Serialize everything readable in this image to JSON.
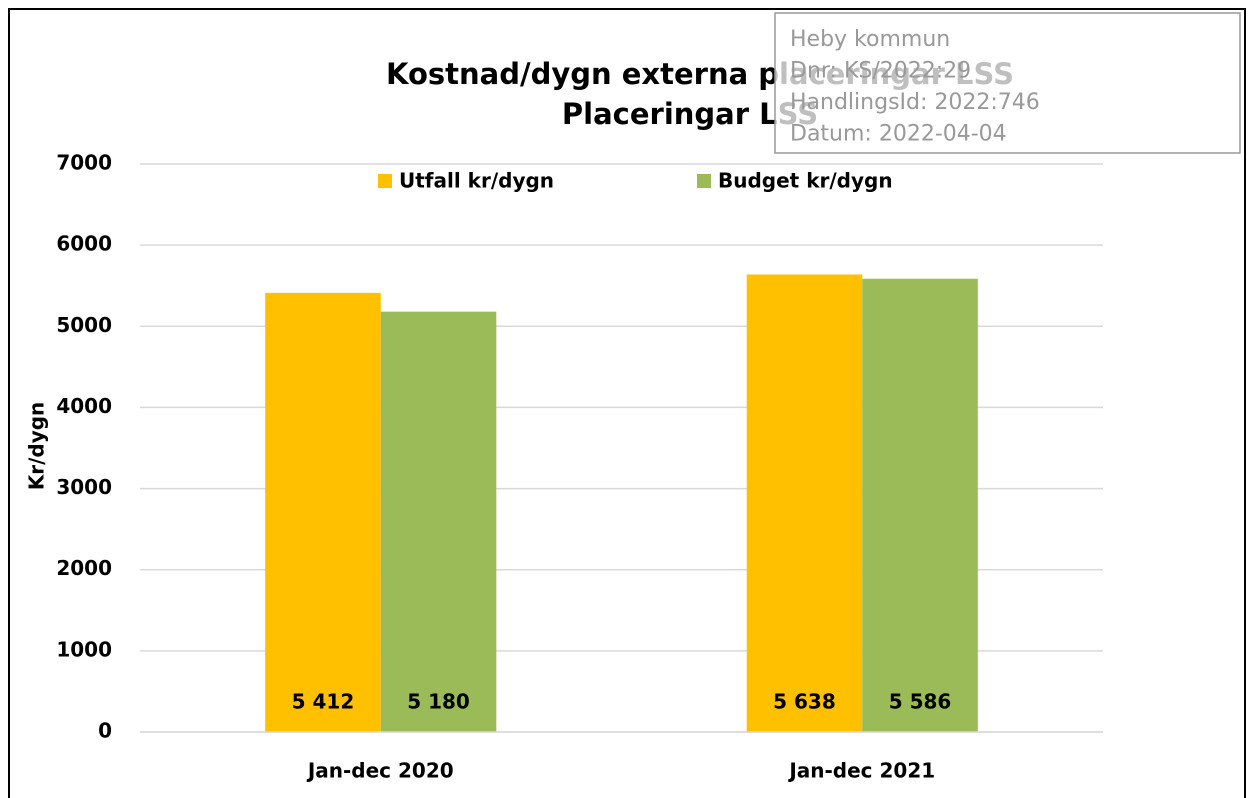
{
  "chart_data": {
    "type": "bar",
    "title": [
      "Kostnad/dygn externa placeringar LSS",
      "Placeringar LSS"
    ],
    "ylabel": "Kr/dygn",
    "categories": [
      "Jan-dec 2020",
      "Jan-dec 2021"
    ],
    "series": [
      {
        "name": "Utfall kr/dygn",
        "color": "#ffc000",
        "values": [
          5412,
          5638
        ],
        "value_labels": [
          "5 412",
          "5 638"
        ]
      },
      {
        "name": "Budget kr/dygn",
        "color": "#9bbb59",
        "values": [
          5180,
          5586
        ],
        "value_labels": [
          "5 180",
          "5 586"
        ]
      }
    ],
    "ylim": [
      0,
      7000
    ],
    "yticks": [
      0,
      1000,
      2000,
      3000,
      4000,
      5000,
      6000,
      7000
    ],
    "grid": true,
    "legend": "top"
  },
  "stamp": [
    "Heby kommun",
    "Dnr: KS/2022:29",
    "HandlingsId: 2022:746",
    "Datum: 2022-04-04"
  ]
}
